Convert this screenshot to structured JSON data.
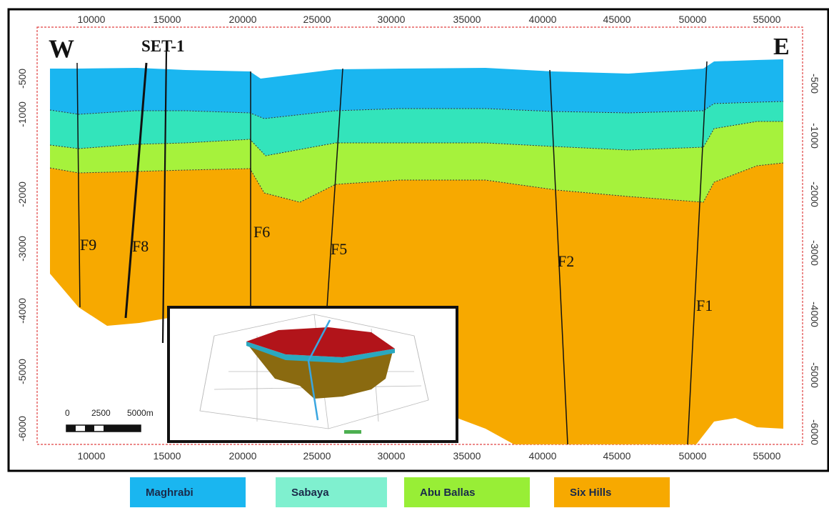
{
  "section": {
    "west_label": "W",
    "east_label": "E",
    "well_label": "SET-1",
    "x_ticks": [
      10000,
      15000,
      20000,
      25000,
      30000,
      35000,
      40000,
      45000,
      50000,
      55000
    ],
    "y_ticks_left": [
      "-500",
      "-1000",
      "-2000",
      "-3000",
      "-4000",
      "-5000",
      "-6000"
    ],
    "y_ticks_right": [
      "-500",
      "-1000",
      "-2000",
      "-3000",
      "-4000",
      "-5000",
      "-6000"
    ],
    "faults": [
      {
        "label": "F9"
      },
      {
        "label": "F8"
      },
      {
        "label": "F6"
      },
      {
        "label": "F5"
      },
      {
        "label": "F2"
      },
      {
        "label": "F1"
      }
    ],
    "scale_bar": {
      "labels": [
        "0",
        "2500",
        "5000m"
      ]
    }
  },
  "legend": [
    {
      "label": "Maghrabi",
      "color": "#1ab6f0"
    },
    {
      "label": "Sabaya",
      "color": "#7ff0cf"
    },
    {
      "label": "Abu Ballas",
      "color": "#98ee36"
    },
    {
      "label": "Six Hills",
      "color": "#f7a900"
    }
  ],
  "colors": {
    "maghrabi": "#1ab6f0",
    "sabaya": "#33e4bb",
    "abu_ballas": "#a6f23c",
    "six_hills": "#f7a900",
    "frame_border": "#e04040"
  }
}
